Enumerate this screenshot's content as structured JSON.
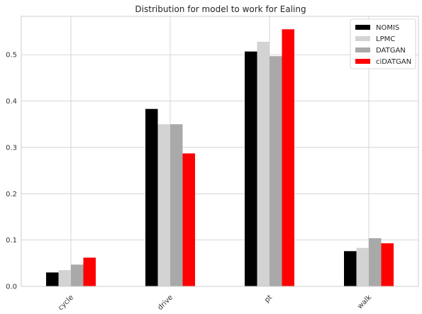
{
  "chart_data": {
    "type": "bar",
    "title": "Distribution for model to work for Ealing",
    "xlabel": "",
    "ylabel": "",
    "categories": [
      "cycle",
      "drive",
      "pt",
      "walk"
    ],
    "series": [
      {
        "name": "NOMIS",
        "color": "#000000",
        "values": [
          0.03,
          0.383,
          0.507,
          0.076
        ]
      },
      {
        "name": "LPMC",
        "color": "#d3d3d3",
        "values": [
          0.035,
          0.35,
          0.528,
          0.083
        ]
      },
      {
        "name": "DATGAN",
        "color": "#a9a9a9",
        "values": [
          0.047,
          0.35,
          0.497,
          0.104
        ]
      },
      {
        "name": "ciDATGAN",
        "color": "#ff0000",
        "values": [
          0.062,
          0.287,
          0.555,
          0.093
        ]
      }
    ],
    "yticks": [
      0.0,
      0.1,
      0.2,
      0.3,
      0.4,
      0.5
    ],
    "ytick_labels": [
      "0.0",
      "0.1",
      "0.2",
      "0.3",
      "0.4",
      "0.5"
    ],
    "ylim": [
      0,
      0.583
    ],
    "grid": true,
    "legend_position": "top-right"
  }
}
